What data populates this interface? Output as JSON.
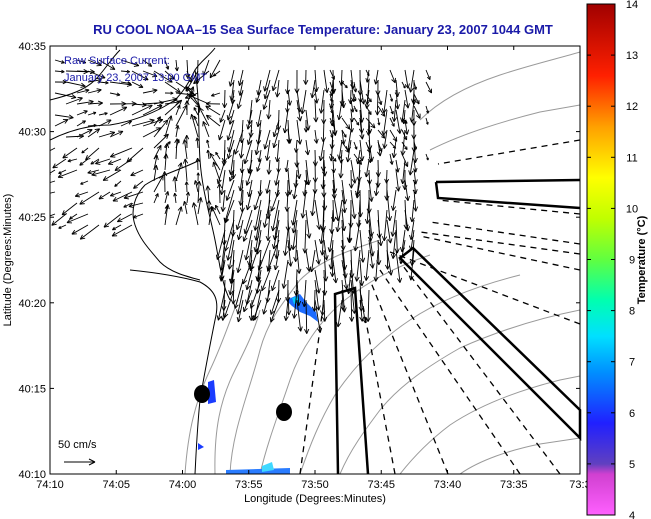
{
  "chart_data": {
    "type": "vector_field_map",
    "title": "RU COOL  NOAA–15  Sea Surface Temperature:  January 23, 2007 1044 GMT",
    "xlabel": "Longitude (Degrees:Minutes)",
    "ylabel": "Latitude (Degrees:Minutes)",
    "x_ticks": [
      "74:10",
      "74:05",
      "74:00",
      "73:55",
      "73:50",
      "73:45",
      "73:40",
      "73:35",
      "73:3"
    ],
    "y_ticks": [
      "40:35",
      "40:30",
      "40:25",
      "40:20",
      "40:15",
      "40:10"
    ],
    "xlim_minutes_west": [
      10,
      30
    ],
    "ylim_minutes_north": [
      10,
      35
    ],
    "annotations": [
      "Raw Surface Current:",
      "January 23, 2007 13:00 GMT"
    ],
    "scale_label": "50 cm/s",
    "colorbar": {
      "label": "Temperature (°C)",
      "ticks": [
        14,
        13,
        12,
        11,
        10,
        9,
        8,
        7,
        6,
        5,
        4
      ],
      "range": [
        4,
        14
      ]
    },
    "sst_patches_approx_c": [
      {
        "lon": "73:56",
        "lat": "40:20",
        "temp": 6.2
      },
      {
        "lon": "73:59",
        "lat": "40:15",
        "temp": 5.6
      },
      {
        "lon": "73:55",
        "lat": "40:10",
        "temp": 6.4
      }
    ]
  }
}
